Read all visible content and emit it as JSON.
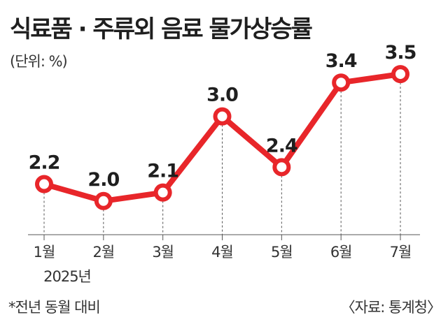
{
  "chart_data": {
    "type": "line",
    "title": "식료품 · 주류외 음료 물가상승률",
    "unit": "(단위: %)",
    "categories": [
      "1월",
      "2월",
      "3월",
      "4월",
      "5월",
      "6월",
      "7월"
    ],
    "year_label": "2025년",
    "values": [
      2.2,
      2.0,
      2.1,
      3.0,
      2.4,
      3.4,
      3.5
    ],
    "value_labels": [
      "2.2",
      "2.0",
      "2.1",
      "3.0",
      "2.4",
      "3.4",
      "3.5"
    ],
    "ylim": [
      1.8,
      3.6
    ],
    "grid": false,
    "line_color": "#e8262a",
    "marker_fill": "#ffffff",
    "footnote": "*전년 동월 대비",
    "source": "〈자료: 통계청〉"
  }
}
